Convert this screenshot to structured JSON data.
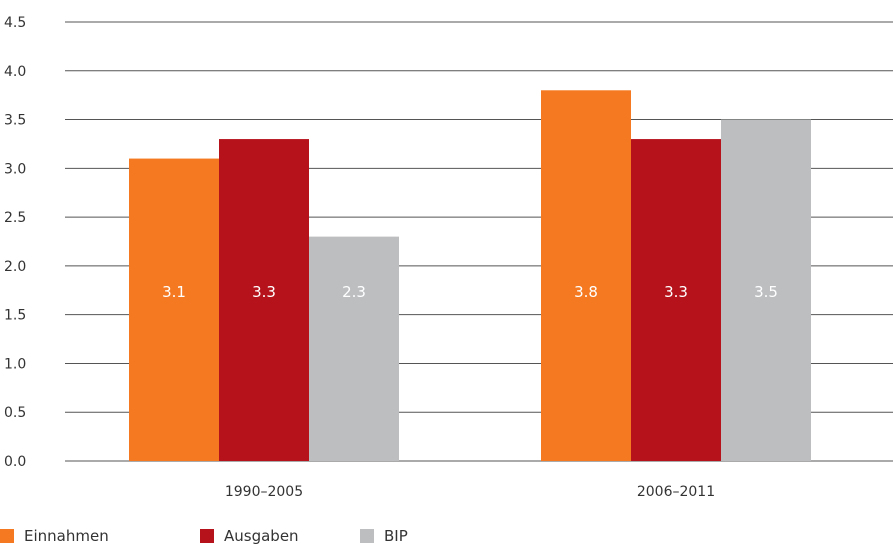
{
  "chart_data": {
    "type": "bar",
    "categories": [
      "1990–2005",
      "2006–2011"
    ],
    "series": [
      {
        "name": "Einnahmen",
        "values": [
          3.1,
          3.8
        ],
        "labels": [
          "3.1",
          "3.8"
        ],
        "color": "#f47920"
      },
      {
        "name": "Ausgaben",
        "values": [
          3.3,
          3.3
        ],
        "labels": [
          "3.3",
          "3.3"
        ],
        "color": "#b5121b"
      },
      {
        "name": "BIP",
        "values": [
          2.3,
          3.5
        ],
        "labels": [
          "2.3",
          "3.5"
        ],
        "color": "#bcbec0"
      }
    ],
    "y_ticks": [
      "0.0",
      "0.5",
      "1.0",
      "1.5",
      "2.0",
      "2.5",
      "3.0",
      "3.5",
      "4.0",
      "4.5"
    ],
    "ylim": [
      0,
      4.5
    ],
    "grid": true,
    "legend": "bottom-left",
    "title": "",
    "xlabel": "",
    "ylabel": ""
  }
}
